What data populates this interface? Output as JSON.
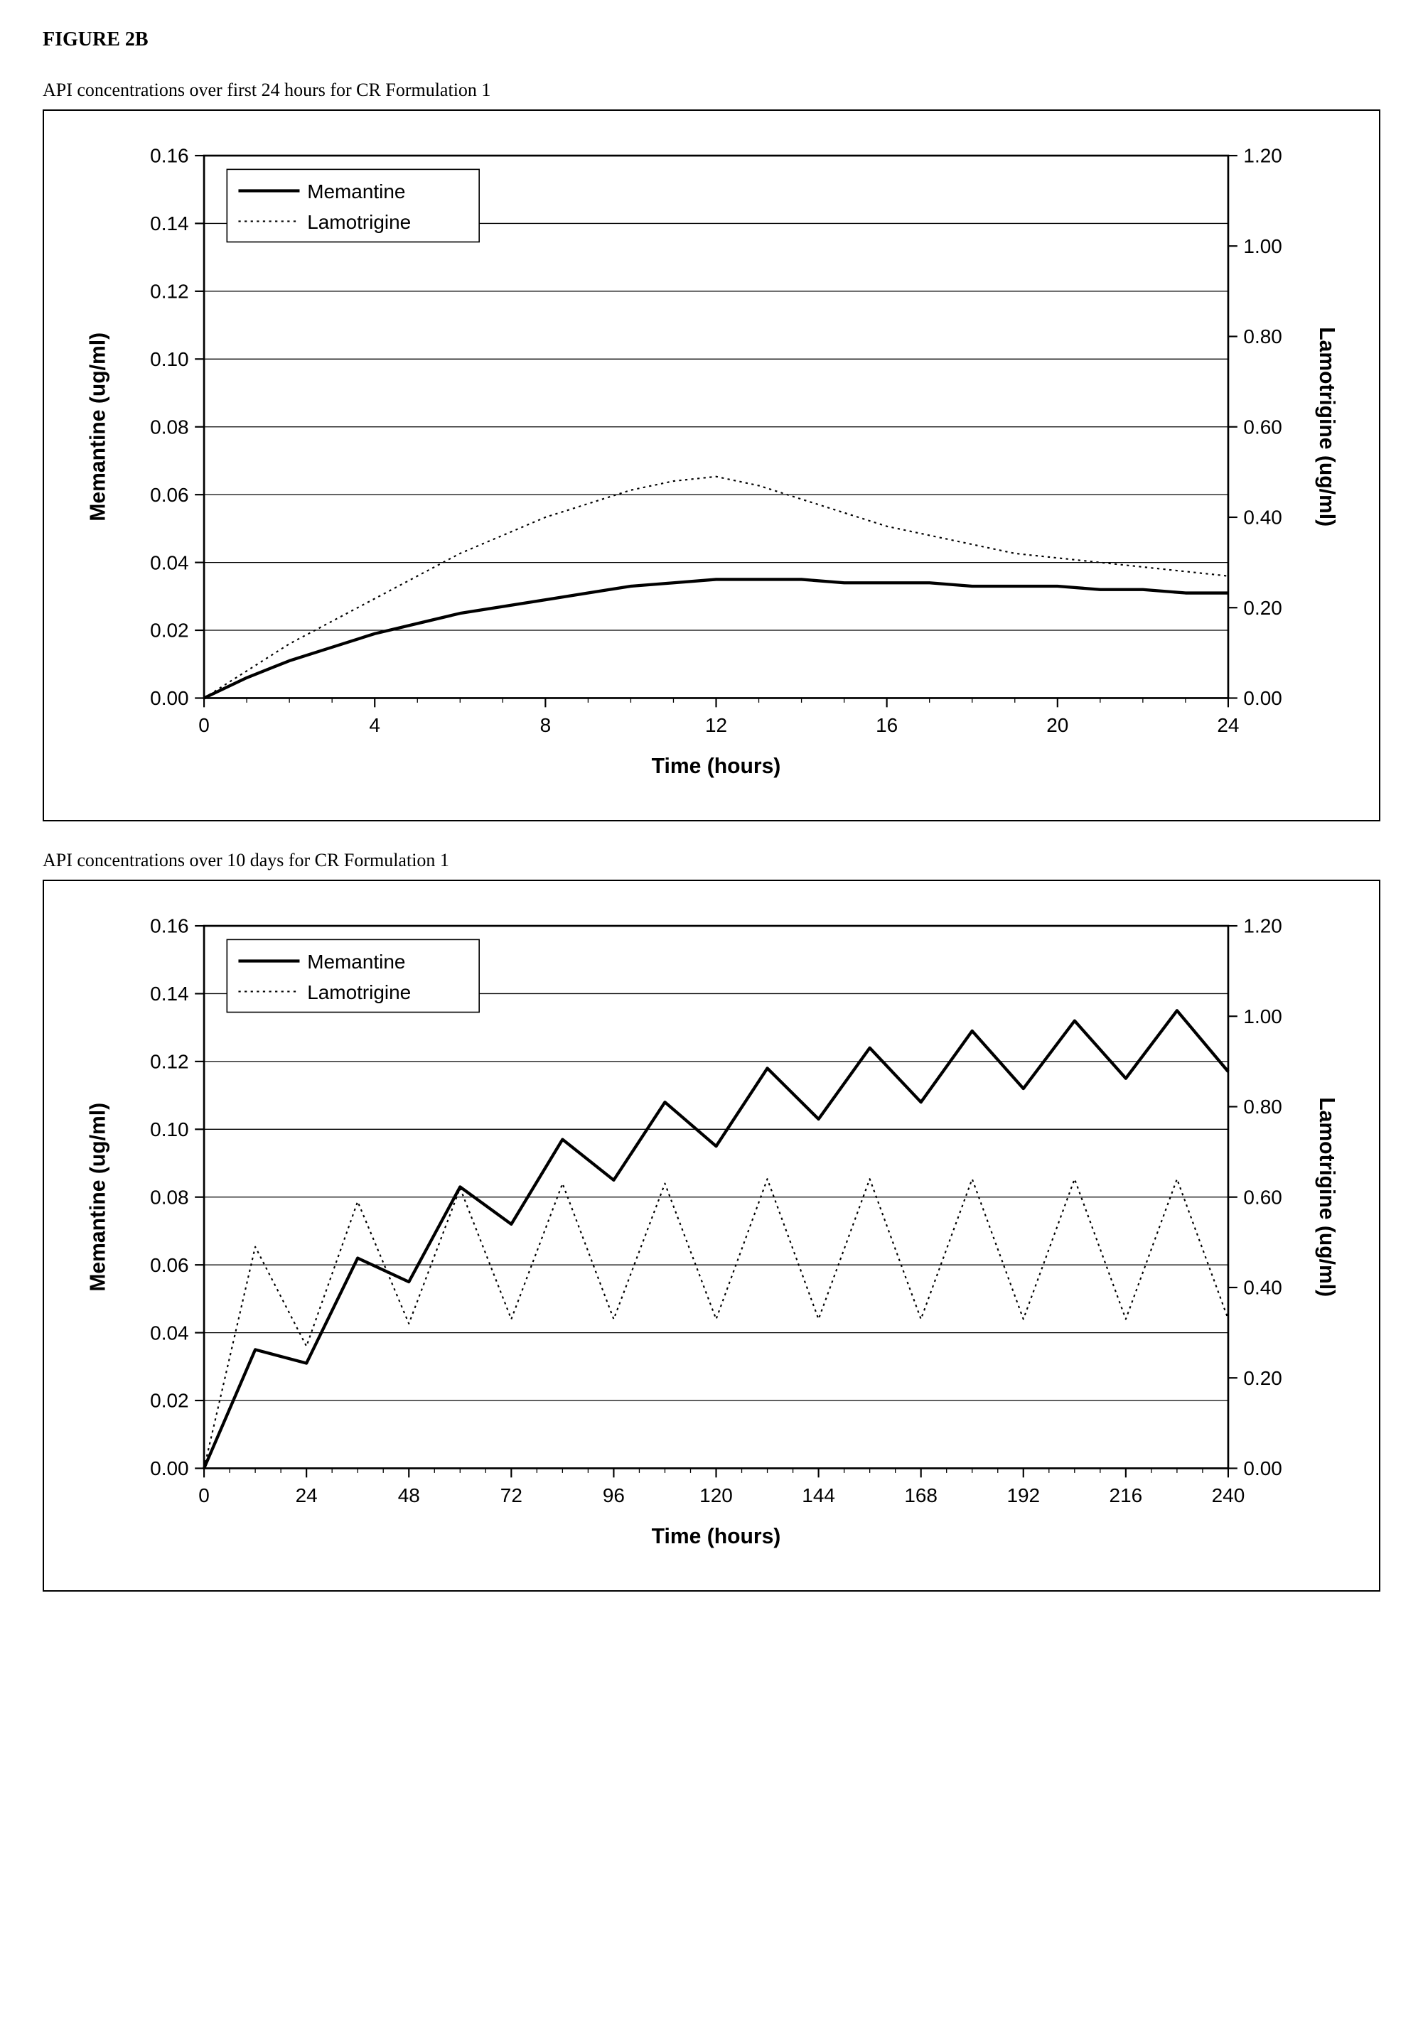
{
  "figure_title": "FIGURE 2B",
  "chart1": {
    "type": "line-dual-axis",
    "caption": "API concentrations over first 24 hours for CR Formulation 1",
    "x_label": "Time (hours)",
    "y_left_label": "Memantine (ug/ml)",
    "y_right_label": "Lamotrigine (ug/ml)",
    "x_min": 0,
    "x_max": 24,
    "x_tick_step": 4,
    "y_left_min": 0,
    "y_left_max": 0.16,
    "y_left_tick_step": 0.02,
    "y_right_min": 0,
    "y_right_max": 1.2,
    "y_right_tick_step": 0.2,
    "background_color": "#ffffff",
    "grid_color": "#000000",
    "grid_width": 1.2,
    "series": [
      {
        "name": "Memantine",
        "axis": "left",
        "color": "#000000",
        "line_width": 4,
        "dash": null,
        "x": [
          0,
          1,
          2,
          3,
          4,
          5,
          6,
          7,
          8,
          9,
          10,
          11,
          12,
          13,
          14,
          15,
          16,
          17,
          18,
          19,
          20,
          21,
          22,
          23,
          24
        ],
        "y": [
          0.0,
          0.006,
          0.011,
          0.015,
          0.019,
          0.022,
          0.025,
          0.027,
          0.029,
          0.031,
          0.033,
          0.034,
          0.035,
          0.035,
          0.035,
          0.034,
          0.034,
          0.034,
          0.033,
          0.033,
          0.033,
          0.032,
          0.032,
          0.031,
          0.031
        ]
      },
      {
        "name": "Lamotrigine",
        "axis": "right",
        "color": "#000000",
        "line_width": 2,
        "dash": "3,5",
        "x": [
          0,
          1,
          2,
          3,
          4,
          5,
          6,
          7,
          8,
          9,
          10,
          11,
          12,
          13,
          14,
          15,
          16,
          17,
          18,
          19,
          20,
          21,
          22,
          23,
          24
        ],
        "y": [
          0.0,
          0.06,
          0.12,
          0.17,
          0.22,
          0.27,
          0.32,
          0.36,
          0.4,
          0.43,
          0.46,
          0.48,
          0.49,
          0.47,
          0.44,
          0.41,
          0.38,
          0.36,
          0.34,
          0.32,
          0.31,
          0.3,
          0.29,
          0.28,
          0.27
        ]
      }
    ],
    "legend": {
      "lines": [
        "Memantine",
        "Lamotrigine"
      ]
    },
    "title_fontsize": 26,
    "label_fontsize": 28,
    "tick_fontsize": 26
  },
  "chart2": {
    "type": "line-dual-axis",
    "caption": "API concentrations over 10 days for CR Formulation 1",
    "x_label": "Time (hours)",
    "y_left_label": "Memantine (ug/ml)",
    "y_right_label": "Lamotrigine (ug/ml)",
    "x_min": 0,
    "x_max": 240,
    "x_tick_step": 24,
    "y_left_min": 0,
    "y_left_max": 0.16,
    "y_left_tick_step": 0.02,
    "y_right_min": 0,
    "y_right_max": 1.2,
    "y_right_tick_step": 0.2,
    "background_color": "#ffffff",
    "grid_color": "#000000",
    "grid_width": 1.2,
    "series": [
      {
        "name": "Memantine",
        "axis": "left",
        "color": "#000000",
        "line_width": 4,
        "dash": null,
        "x": [
          0,
          12,
          24,
          36,
          48,
          60,
          72,
          84,
          96,
          108,
          120,
          132,
          144,
          156,
          168,
          180,
          192,
          204,
          216,
          228,
          240
        ],
        "y": [
          0.0,
          0.035,
          0.031,
          0.062,
          0.055,
          0.083,
          0.072,
          0.097,
          0.085,
          0.108,
          0.095,
          0.118,
          0.103,
          0.124,
          0.108,
          0.129,
          0.112,
          0.132,
          0.115,
          0.135,
          0.117
        ]
      },
      {
        "name": "Lamotrigine",
        "axis": "right",
        "color": "#000000",
        "line_width": 2,
        "dash": "3,5",
        "x": [
          0,
          12,
          24,
          36,
          48,
          60,
          72,
          84,
          96,
          108,
          120,
          132,
          144,
          156,
          168,
          180,
          192,
          204,
          216,
          228,
          240
        ],
        "y": [
          0.0,
          0.49,
          0.27,
          0.59,
          0.32,
          0.62,
          0.33,
          0.63,
          0.33,
          0.63,
          0.33,
          0.64,
          0.33,
          0.64,
          0.33,
          0.64,
          0.33,
          0.64,
          0.33,
          0.64,
          0.33
        ]
      }
    ],
    "legend": {
      "lines": [
        "Memantine",
        "Lamotrigine"
      ]
    },
    "title_fontsize": 26,
    "label_fontsize": 28,
    "tick_fontsize": 26
  }
}
